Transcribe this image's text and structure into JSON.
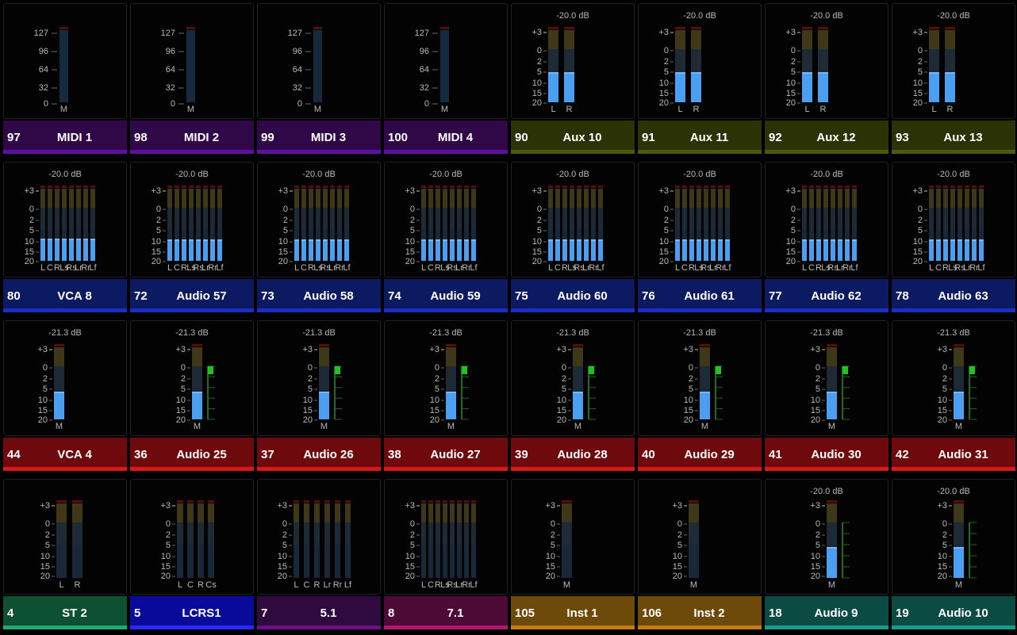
{
  "colors": {
    "midi": {
      "bg": "#300848",
      "bar": "#6010a0"
    },
    "aux": {
      "bg": "#2b3306",
      "bar": "#4c5a10"
    },
    "vca_blue": {
      "bg": "#0c1a62",
      "bar": "#1c2ec0"
    },
    "audio_blue": {
      "bg": "#0c1a62",
      "bar": "#1c2ec0"
    },
    "red": {
      "bg": "#6e0a0e",
      "bar": "#d81818"
    },
    "st": {
      "bg": "#0e5032",
      "bar": "#20a870"
    },
    "lcrs": {
      "bg": "#0a0a9a",
      "bar": "#2a2aff"
    },
    "s51": {
      "bg": "#2e0a3e",
      "bar": "#6a1080"
    },
    "s71": {
      "bg": "#4e0a36",
      "bar": "#b01870"
    },
    "inst": {
      "bg": "#6e4a0a",
      "bar": "#c27c14"
    },
    "teal": {
      "bg": "#0c4a44",
      "bar": "#1a9a8a"
    }
  },
  "tiles": [
    {
      "num": "97",
      "name": "MIDI 1",
      "color": "midi",
      "meter": "midi",
      "db": "",
      "scale": [
        "127",
        "96",
        "64",
        "32",
        "0"
      ],
      "labels": [
        "M"
      ],
      "level": 0,
      "fader": null
    },
    {
      "num": "98",
      "name": "MIDI 2",
      "color": "midi",
      "meter": "midi",
      "db": "",
      "scale": [
        "127",
        "96",
        "64",
        "32",
        "0"
      ],
      "labels": [
        "M"
      ],
      "level": 0,
      "fader": null
    },
    {
      "num": "99",
      "name": "MIDI 3",
      "color": "midi",
      "meter": "midi",
      "db": "",
      "scale": [
        "127",
        "96",
        "64",
        "32",
        "0"
      ],
      "labels": [
        "M"
      ],
      "level": 0,
      "fader": null
    },
    {
      "num": "100",
      "name": "MIDI 4",
      "color": "midi",
      "meter": "midi",
      "db": "",
      "scale": [
        "127",
        "96",
        "64",
        "32",
        "0"
      ],
      "labels": [
        "M"
      ],
      "level": 0,
      "fader": null
    },
    {
      "num": "90",
      "name": "Aux 10",
      "color": "aux",
      "meter": "audio",
      "db": "-20.0 dB",
      "scale": [
        "+3",
        "0",
        "2",
        "5",
        "10",
        "15",
        "20"
      ],
      "labels": [
        "L",
        "R"
      ],
      "level": 0.42,
      "fader": null
    },
    {
      "num": "91",
      "name": "Aux 11",
      "color": "aux",
      "meter": "audio",
      "db": "-20.0 dB",
      "scale": [
        "+3",
        "0",
        "2",
        "5",
        "10",
        "15",
        "20"
      ],
      "labels": [
        "L",
        "R"
      ],
      "level": 0.42,
      "fader": null
    },
    {
      "num": "92",
      "name": "Aux 12",
      "color": "aux",
      "meter": "audio",
      "db": "-20.0 dB",
      "scale": [
        "+3",
        "0",
        "2",
        "5",
        "10",
        "15",
        "20"
      ],
      "labels": [
        "L",
        "R"
      ],
      "level": 0.42,
      "fader": null
    },
    {
      "num": "93",
      "name": "Aux 13",
      "color": "aux",
      "meter": "audio",
      "db": "-20.0 dB",
      "scale": [
        "+3",
        "0",
        "2",
        "5",
        "10",
        "15",
        "20"
      ],
      "labels": [
        "L",
        "R"
      ],
      "level": 0.42,
      "fader": null
    },
    {
      "num": "80",
      "name": "VCA 8",
      "color": "vca_blue",
      "meter": "audio",
      "db": "-20.0 dB",
      "scale": [
        "+3",
        "0",
        "2",
        "5",
        "10",
        "15",
        "20"
      ],
      "labels": [
        "L",
        "C",
        "R",
        "Ls",
        "Rs",
        "Lr",
        "Rr",
        "Lf"
      ],
      "level": 0.31,
      "fader": null
    },
    {
      "num": "72",
      "name": "Audio 57",
      "color": "audio_blue",
      "meter": "audio",
      "db": "-20.0 dB",
      "scale": [
        "+3",
        "0",
        "2",
        "5",
        "10",
        "15",
        "20"
      ],
      "labels": [
        "L",
        "C",
        "R",
        "Ls",
        "Rs",
        "Lr",
        "Rr",
        "Lf"
      ],
      "level": 0.3,
      "fader": null
    },
    {
      "num": "73",
      "name": "Audio 58",
      "color": "audio_blue",
      "meter": "audio",
      "db": "-20.0 dB",
      "scale": [
        "+3",
        "0",
        "2",
        "5",
        "10",
        "15",
        "20"
      ],
      "labels": [
        "L",
        "C",
        "R",
        "Ls",
        "Rs",
        "Lr",
        "Rr",
        "Lf"
      ],
      "level": 0.3,
      "fader": null
    },
    {
      "num": "74",
      "name": "Audio 59",
      "color": "audio_blue",
      "meter": "audio",
      "db": "-20.0 dB",
      "scale": [
        "+3",
        "0",
        "2",
        "5",
        "10",
        "15",
        "20"
      ],
      "labels": [
        "L",
        "C",
        "R",
        "Ls",
        "Rs",
        "Lr",
        "Rr",
        "Lf"
      ],
      "level": 0.3,
      "fader": null
    },
    {
      "num": "75",
      "name": "Audio 60",
      "color": "audio_blue",
      "meter": "audio",
      "db": "-20.0 dB",
      "scale": [
        "+3",
        "0",
        "2",
        "5",
        "10",
        "15",
        "20"
      ],
      "labels": [
        "L",
        "C",
        "R",
        "Ls",
        "Rs",
        "Lr",
        "Rr",
        "Lf"
      ],
      "level": 0.3,
      "fader": null
    },
    {
      "num": "76",
      "name": "Audio 61",
      "color": "audio_blue",
      "meter": "audio",
      "db": "-20.0 dB",
      "scale": [
        "+3",
        "0",
        "2",
        "5",
        "10",
        "15",
        "20"
      ],
      "labels": [
        "L",
        "C",
        "R",
        "Ls",
        "Rs",
        "Lr",
        "Rr",
        "Lf"
      ],
      "level": 0.3,
      "fader": null
    },
    {
      "num": "77",
      "name": "Audio 62",
      "color": "audio_blue",
      "meter": "audio",
      "db": "-20.0 dB",
      "scale": [
        "+3",
        "0",
        "2",
        "5",
        "10",
        "15",
        "20"
      ],
      "labels": [
        "L",
        "C",
        "R",
        "Ls",
        "Rs",
        "Lr",
        "Rr",
        "Lf"
      ],
      "level": 0.3,
      "fader": null
    },
    {
      "num": "78",
      "name": "Audio 63",
      "color": "audio_blue",
      "meter": "audio",
      "db": "-20.0 dB",
      "scale": [
        "+3",
        "0",
        "2",
        "5",
        "10",
        "15",
        "20"
      ],
      "labels": [
        "L",
        "C",
        "R",
        "Ls",
        "Rs",
        "Lr",
        "Rr",
        "Lf"
      ],
      "level": 0.3,
      "fader": null
    },
    {
      "num": "44",
      "name": "VCA 4",
      "color": "red",
      "meter": "audio",
      "db": "-21.3 dB",
      "scale": [
        "+3",
        "0",
        "2",
        "5",
        "10",
        "15",
        "20"
      ],
      "labels": [
        "M"
      ],
      "level": 0.38,
      "fader": null
    },
    {
      "num": "36",
      "name": "Audio 25",
      "color": "red",
      "meter": "audio",
      "db": "-21.3 dB",
      "scale": [
        "+3",
        "0",
        "2",
        "5",
        "10",
        "15",
        "20"
      ],
      "labels": [
        "M"
      ],
      "level": 0.38,
      "fader": 1
    },
    {
      "num": "37",
      "name": "Audio 26",
      "color": "red",
      "meter": "audio",
      "db": "-21.3 dB",
      "scale": [
        "+3",
        "0",
        "2",
        "5",
        "10",
        "15",
        "20"
      ],
      "labels": [
        "M"
      ],
      "level": 0.38,
      "fader": 1
    },
    {
      "num": "38",
      "name": "Audio 27",
      "color": "red",
      "meter": "audio",
      "db": "-21.3 dB",
      "scale": [
        "+3",
        "0",
        "2",
        "5",
        "10",
        "15",
        "20"
      ],
      "labels": [
        "M"
      ],
      "level": 0.38,
      "fader": 1
    },
    {
      "num": "39",
      "name": "Audio 28",
      "color": "red",
      "meter": "audio",
      "db": "-21.3 dB",
      "scale": [
        "+3",
        "0",
        "2",
        "5",
        "10",
        "15",
        "20"
      ],
      "labels": [
        "M"
      ],
      "level": 0.38,
      "fader": 1
    },
    {
      "num": "40",
      "name": "Audio 29",
      "color": "red",
      "meter": "audio",
      "db": "-21.3 dB",
      "scale": [
        "+3",
        "0",
        "2",
        "5",
        "10",
        "15",
        "20"
      ],
      "labels": [
        "M"
      ],
      "level": 0.38,
      "fader": 1
    },
    {
      "num": "41",
      "name": "Audio 30",
      "color": "red",
      "meter": "audio",
      "db": "-21.3 dB",
      "scale": [
        "+3",
        "0",
        "2",
        "5",
        "10",
        "15",
        "20"
      ],
      "labels": [
        "M"
      ],
      "level": 0.38,
      "fader": 1
    },
    {
      "num": "42",
      "name": "Audio 31",
      "color": "red",
      "meter": "audio",
      "db": "-21.3 dB",
      "scale": [
        "+3",
        "0",
        "2",
        "5",
        "10",
        "15",
        "20"
      ],
      "labels": [
        "M"
      ],
      "level": 0.38,
      "fader": 1
    },
    {
      "num": "4",
      "name": "ST 2",
      "color": "st",
      "meter": "audio",
      "db": "",
      "scale": [
        "+3",
        "0",
        "2",
        "5",
        "10",
        "15",
        "20"
      ],
      "labels": [
        "L",
        "R"
      ],
      "level": 0,
      "fader": null
    },
    {
      "num": "5",
      "name": "LCRS1",
      "color": "lcrs",
      "meter": "audio",
      "db": "",
      "scale": [
        "+3",
        "0",
        "2",
        "5",
        "10",
        "15",
        "20"
      ],
      "labels": [
        "L",
        "C",
        "R",
        "Cs"
      ],
      "level": 0,
      "fader": null
    },
    {
      "num": "7",
      "name": "5.1",
      "color": "s51",
      "meter": "audio",
      "db": "",
      "scale": [
        "+3",
        "0",
        "2",
        "5",
        "10",
        "15",
        "20"
      ],
      "labels": [
        "L",
        "C",
        "R",
        "Lr",
        "Rr",
        "Lf"
      ],
      "level": 0,
      "fader": null
    },
    {
      "num": "8",
      "name": "7.1",
      "color": "s71",
      "meter": "audio",
      "db": "",
      "scale": [
        "+3",
        "0",
        "2",
        "5",
        "10",
        "15",
        "20"
      ],
      "labels": [
        "L",
        "C",
        "R",
        "Ls",
        "Rs",
        "Lr",
        "Rr",
        "Lf"
      ],
      "level": 0,
      "fader": null
    },
    {
      "num": "105",
      "name": "Inst 1",
      "color": "inst",
      "meter": "audio",
      "db": "",
      "scale": [
        "+3",
        "0",
        "2",
        "5",
        "10",
        "15",
        "20"
      ],
      "labels": [
        "M"
      ],
      "level": 0,
      "fader": null
    },
    {
      "num": "106",
      "name": "Inst 2",
      "color": "inst",
      "meter": "audio",
      "db": "",
      "scale": [
        "+3",
        "0",
        "2",
        "5",
        "10",
        "15",
        "20"
      ],
      "labels": [
        "M"
      ],
      "level": 0,
      "fader": null
    },
    {
      "num": "18",
      "name": "Audio 9",
      "color": "teal",
      "meter": "audio",
      "db": "-20.0 dB",
      "scale": [
        "+3",
        "0",
        "2",
        "5",
        "10",
        "15",
        "20"
      ],
      "labels": [
        "M"
      ],
      "level": 0.42,
      "fader": 0
    },
    {
      "num": "19",
      "name": "Audio 10",
      "color": "teal",
      "meter": "audio",
      "db": "-20.0 dB",
      "scale": [
        "+3",
        "0",
        "2",
        "5",
        "10",
        "15",
        "20"
      ],
      "labels": [
        "M"
      ],
      "level": 0.42,
      "fader": 0
    }
  ]
}
